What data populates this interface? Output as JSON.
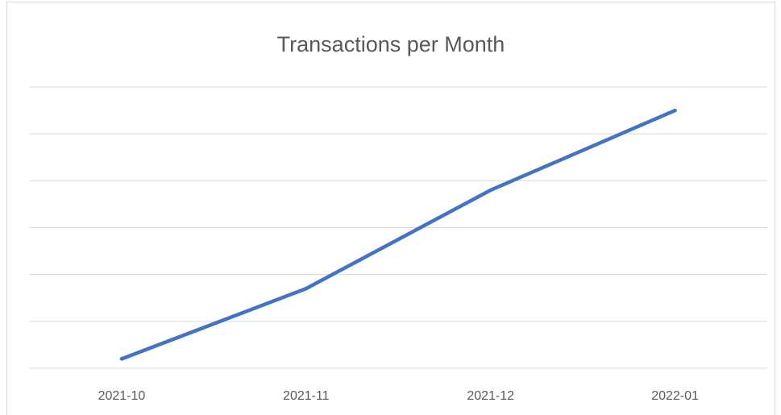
{
  "chart_data": {
    "type": "line",
    "title": "Transactions per Month",
    "categories": [
      "2021-10",
      "2021-11",
      "2021-12",
      "2022-01"
    ],
    "values": [
      0.2,
      1.7,
      3.8,
      5.5
    ],
    "color": "#4472c4",
    "ylim": [
      0,
      6
    ],
    "yticks": [
      0,
      1,
      2,
      3,
      4,
      5,
      6
    ],
    "grid": true
  }
}
